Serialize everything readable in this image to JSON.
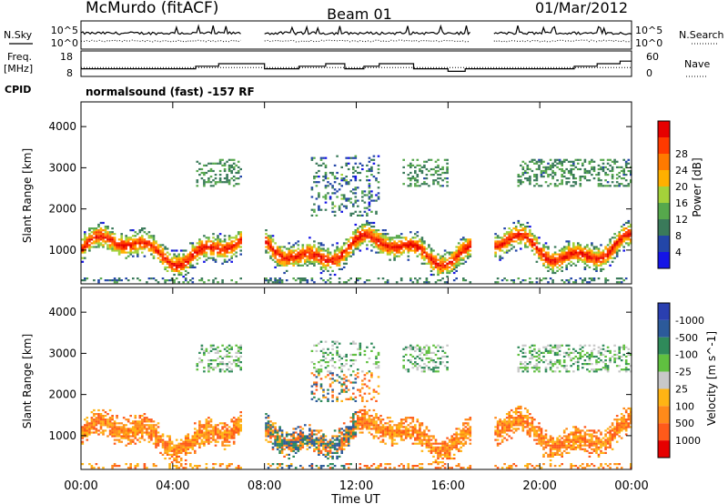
{
  "header": {
    "station": "McMurdo (fitACF)",
    "beam": "Beam 01",
    "date": "01/Mar/2012"
  },
  "status_panel": {
    "nsky_label": "N.Sky",
    "nsearch_label": "N.Search",
    "noise_ticks": [
      "10^5",
      "10^0"
    ],
    "freq_label_1": "Freq.",
    "freq_label_2": "[MHz]",
    "freq_ticks": [
      "18",
      "8"
    ],
    "nave_label": "Nave",
    "nave_ticks": [
      "60",
      "0"
    ],
    "cpid_label": "CPID",
    "cpid_text": "normalsound (fast) -157 RF"
  },
  "colors": {
    "power_scale": [
      "#1414e6",
      "#2346a8",
      "#3a7a5a",
      "#56a84c",
      "#a4d23a",
      "#ffb000",
      "#ff7a00",
      "#ff3a00",
      "#e60000"
    ],
    "velocity_scale": [
      "#e60000",
      "#ff5a1a",
      "#ff8a1a",
      "#ffb414",
      "#c8c8c8",
      "#60c040",
      "#2f8a5a",
      "#2c5a9a",
      "#2a3fb0"
    ],
    "line": "#000000"
  },
  "chart_data": [
    {
      "type": "line",
      "title": "N.Sky / N.Search",
      "x_range": [
        "00:00",
        "24:00"
      ],
      "y_ticks": [
        "10^5",
        "10^0"
      ],
      "segments": [
        [
          "00:00",
          "07:00"
        ],
        [
          "08:00",
          "17:00"
        ],
        [
          "18:00",
          "24:00"
        ]
      ]
    },
    {
      "type": "line",
      "title": "Freq. [MHz] / Nave",
      "left_ticks": [
        18,
        8
      ],
      "right_ticks": [
        60,
        0
      ],
      "freq_steps_mhz": [
        {
          "t": "00:00",
          "v": 11
        },
        {
          "t": "05:00",
          "v": 12
        },
        {
          "t": "06:00",
          "v": 13
        },
        {
          "t": "07:00",
          "v": 13
        },
        {
          "t": "08:00",
          "v": 11
        },
        {
          "t": "09:30",
          "v": 12
        },
        {
          "t": "10:40",
          "v": 13
        },
        {
          "t": "11:30",
          "v": 11
        },
        {
          "t": "12:20",
          "v": 12
        },
        {
          "t": "13:00",
          "v": 13
        },
        {
          "t": "14:30",
          "v": 11
        },
        {
          "t": "16:00",
          "v": 10
        },
        {
          "t": "16:45",
          "v": 11
        },
        {
          "t": "18:00",
          "v": 11
        },
        {
          "t": "21:00",
          "v": 11
        },
        {
          "t": "21:30",
          "v": 12
        },
        {
          "t": "22:30",
          "v": 13
        },
        {
          "t": "23:30",
          "v": 14
        }
      ]
    },
    {
      "type": "heatmap",
      "title": "Power",
      "ylabel": "Slant Range [km]",
      "yticks": [
        1000,
        2000,
        3000,
        4000
      ],
      "colorbar_label": "Power [dB]",
      "colorbar_ticks": [
        4,
        8,
        12,
        16,
        20,
        24,
        28
      ],
      "data_gaps": [
        [
          "07:00",
          "08:00"
        ],
        [
          "17:00",
          "18:00"
        ]
      ]
    },
    {
      "type": "heatmap",
      "title": "Velocity",
      "ylabel": "Slant Range [km]",
      "yticks": [
        1000,
        2000,
        3000,
        4000
      ],
      "colorbar_label": "Velocity [m s^-1]",
      "colorbar_ticks": [
        -1000,
        -500,
        -100,
        -25,
        25,
        100,
        500,
        1000
      ],
      "data_gaps": [
        [
          "07:00",
          "08:00"
        ],
        [
          "17:00",
          "18:00"
        ]
      ]
    }
  ],
  "x_axis": {
    "ticks": [
      "00:00",
      "04:00",
      "08:00",
      "12:00",
      "16:00",
      "20:00",
      "00:00"
    ],
    "label": "Time UT"
  }
}
